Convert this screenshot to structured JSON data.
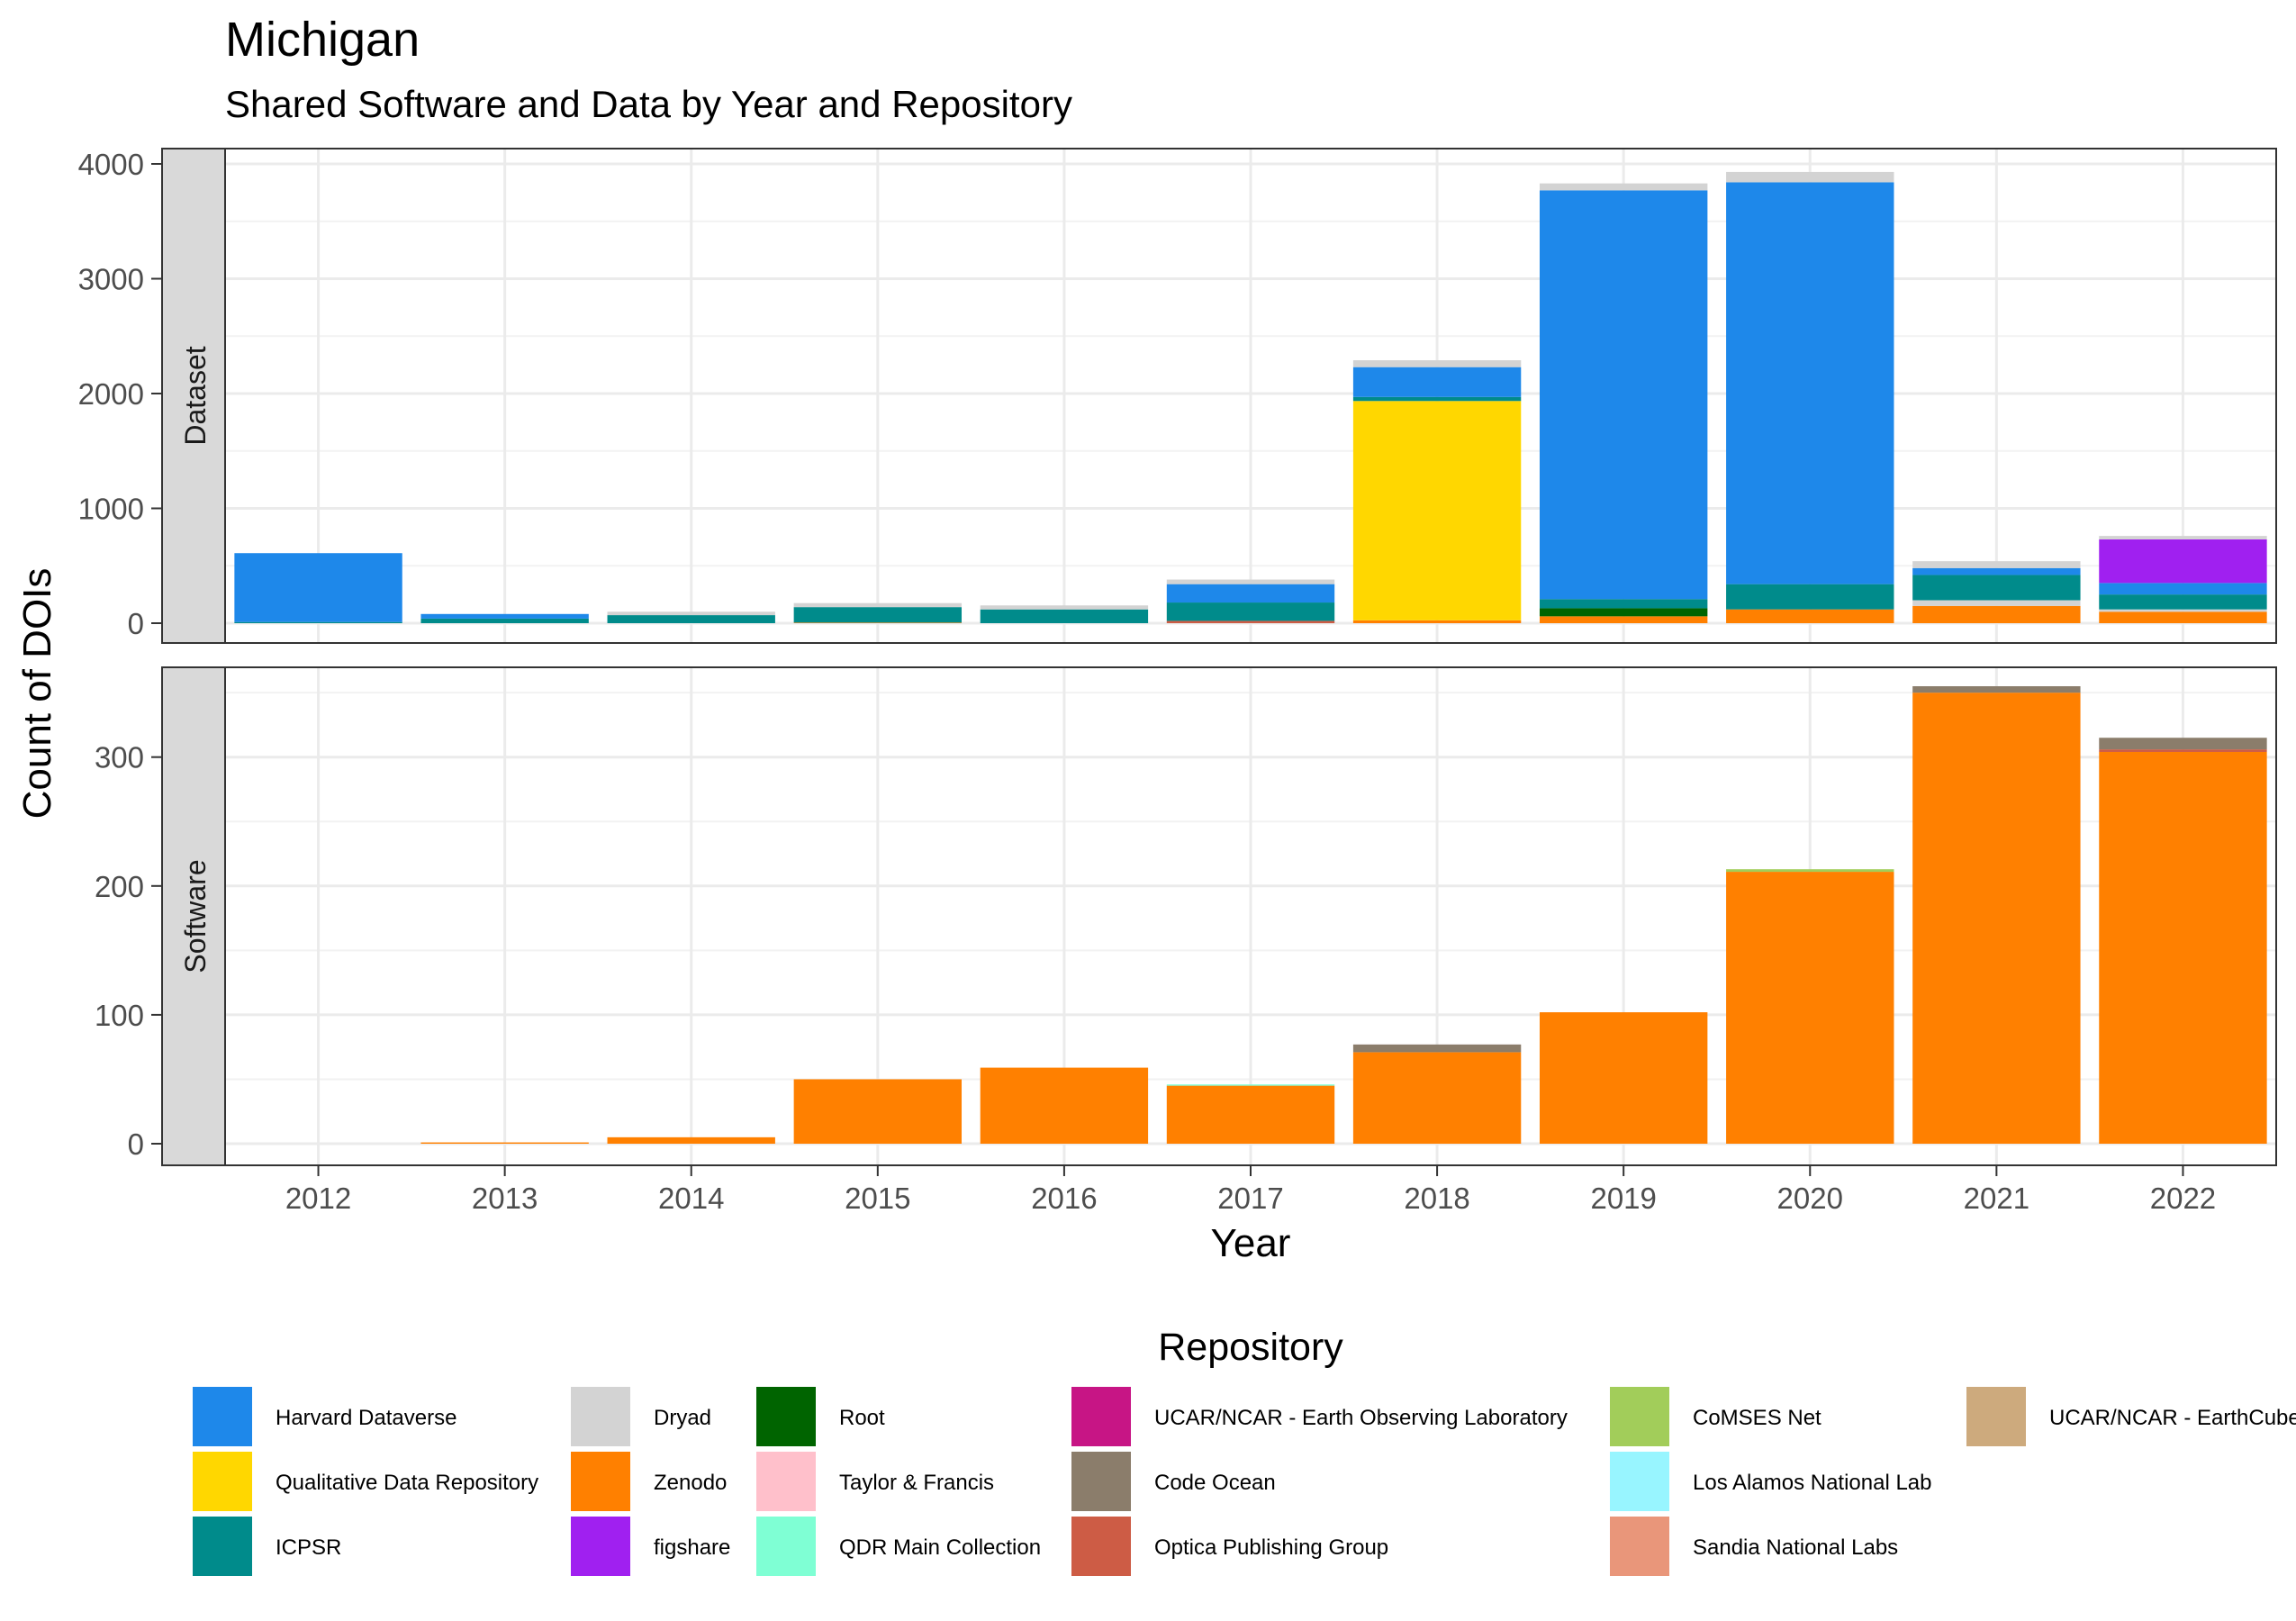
{
  "chart_data": {
    "type": "bar",
    "stacked": true,
    "title": "Michigan",
    "subtitle": "Shared Software and Data by Year and Repository",
    "xlabel": "Year",
    "ylabel": "Count of DOIs",
    "categories": [
      "2012",
      "2013",
      "2014",
      "2015",
      "2016",
      "2017",
      "2018",
      "2019",
      "2020",
      "2021",
      "2022"
    ],
    "grid": true,
    "legend": {
      "title": "Repository",
      "position": "bottom",
      "items": [
        {
          "name": "Harvard Dataverse",
          "color": "#1E88EA"
        },
        {
          "name": "Qualitative Data Repository",
          "color": "#FFD700"
        },
        {
          "name": "ICPSR",
          "color": "#008B8B"
        },
        {
          "name": "Dryad",
          "color": "#D3D3D3"
        },
        {
          "name": "Zenodo",
          "color": "#FF8000"
        },
        {
          "name": "figshare",
          "color": "#A020F0"
        },
        {
          "name": "Root",
          "color": "#006400"
        },
        {
          "name": "Taylor & Francis",
          "color": "#FFC0CB"
        },
        {
          "name": "QDR Main Collection",
          "color": "#7FFFD4"
        },
        {
          "name": "UCAR/NCAR - Earth Observing Laboratory",
          "color": "#C71585"
        },
        {
          "name": "Code Ocean",
          "color": "#8B7D6B"
        },
        {
          "name": "Optica Publishing Group",
          "color": "#CD5C45"
        },
        {
          "name": "CoMSES Net",
          "color": "#A2CD5A"
        },
        {
          "name": "Los Alamos National Lab",
          "color": "#98F5FF"
        },
        {
          "name": "Sandia National Labs",
          "color": "#E9967A"
        },
        {
          "name": "UCAR/NCAR - EarthCube",
          "color": "#CDAA7D"
        }
      ]
    },
    "panels": [
      {
        "label": "Dataset",
        "ylim": [
          0,
          4000
        ],
        "yticks": [
          0,
          1000,
          2000,
          3000,
          4000
        ],
        "bars": [
          {
            "x": "2012",
            "segments": [
              {
                "repo": "ICPSR",
                "value": 10
              },
              {
                "repo": "Harvard Dataverse",
                "value": 600
              }
            ]
          },
          {
            "x": "2013",
            "segments": [
              {
                "repo": "ICPSR",
                "value": 40
              },
              {
                "repo": "Harvard Dataverse",
                "value": 40
              }
            ]
          },
          {
            "x": "2014",
            "segments": [
              {
                "repo": "ICPSR",
                "value": 70
              },
              {
                "repo": "Dryad",
                "value": 30
              }
            ]
          },
          {
            "x": "2015",
            "segments": [
              {
                "repo": "Zenodo",
                "value": 5
              },
              {
                "repo": "ICPSR",
                "value": 135
              },
              {
                "repo": "Dryad",
                "value": 35
              }
            ]
          },
          {
            "x": "2016",
            "segments": [
              {
                "repo": "ICPSR",
                "value": 120
              },
              {
                "repo": "Dryad",
                "value": 35
              }
            ]
          },
          {
            "x": "2017",
            "segments": [
              {
                "repo": "Optica Publishing Group",
                "value": 20
              },
              {
                "repo": "ICPSR",
                "value": 160
              },
              {
                "repo": "Harvard Dataverse",
                "value": 160
              },
              {
                "repo": "Dryad",
                "value": 40
              }
            ]
          },
          {
            "x": "2018",
            "segments": [
              {
                "repo": "Zenodo",
                "value": 25
              },
              {
                "repo": "Qualitative Data Repository",
                "value": 1910
              },
              {
                "repo": "ICPSR",
                "value": 35
              },
              {
                "repo": "Harvard Dataverse",
                "value": 260
              },
              {
                "repo": "Dryad",
                "value": 60
              }
            ]
          },
          {
            "x": "2019",
            "segments": [
              {
                "repo": "Zenodo",
                "value": 60
              },
              {
                "repo": "Root",
                "value": 70
              },
              {
                "repo": "ICPSR",
                "value": 80
              },
              {
                "repo": "Harvard Dataverse",
                "value": 3560
              },
              {
                "repo": "Dryad",
                "value": 60
              }
            ]
          },
          {
            "x": "2020",
            "segments": [
              {
                "repo": "Zenodo",
                "value": 120
              },
              {
                "repo": "ICPSR",
                "value": 220
              },
              {
                "repo": "Harvard Dataverse",
                "value": 3500
              },
              {
                "repo": "Dryad",
                "value": 90
              }
            ]
          },
          {
            "x": "2021",
            "segments": [
              {
                "repo": "Zenodo",
                "value": 150
              },
              {
                "repo": "Dryad",
                "value": 50
              },
              {
                "repo": "ICPSR",
                "value": 220
              },
              {
                "repo": "Harvard Dataverse",
                "value": 60
              },
              {
                "repo": "Dryad",
                "value": 60
              }
            ]
          },
          {
            "x": "2022",
            "segments": [
              {
                "repo": "Zenodo",
                "value": 100
              },
              {
                "repo": "Dryad",
                "value": 20
              },
              {
                "repo": "ICPSR",
                "value": 130
              },
              {
                "repo": "Harvard Dataverse",
                "value": 100
              },
              {
                "repo": "figshare",
                "value": 380
              },
              {
                "repo": "Dryad",
                "value": 30
              }
            ]
          }
        ]
      },
      {
        "label": "Software",
        "ylim": [
          0,
          355
        ],
        "yticks": [
          0,
          100,
          200,
          300
        ],
        "bars": [
          {
            "x": "2012",
            "segments": []
          },
          {
            "x": "2013",
            "segments": [
              {
                "repo": "Zenodo",
                "value": 1
              }
            ]
          },
          {
            "x": "2014",
            "segments": [
              {
                "repo": "Zenodo",
                "value": 5
              }
            ]
          },
          {
            "x": "2015",
            "segments": [
              {
                "repo": "Zenodo",
                "value": 50
              }
            ]
          },
          {
            "x": "2016",
            "segments": [
              {
                "repo": "Zenodo",
                "value": 59
              }
            ]
          },
          {
            "x": "2017",
            "segments": [
              {
                "repo": "Zenodo",
                "value": 45
              },
              {
                "repo": "QDR Main Collection",
                "value": 1
              }
            ]
          },
          {
            "x": "2018",
            "segments": [
              {
                "repo": "Zenodo",
                "value": 71
              },
              {
                "repo": "Code Ocean",
                "value": 6
              }
            ]
          },
          {
            "x": "2019",
            "segments": [
              {
                "repo": "Zenodo",
                "value": 102
              }
            ]
          },
          {
            "x": "2020",
            "segments": [
              {
                "repo": "Zenodo",
                "value": 211
              },
              {
                "repo": "CoMSES Net",
                "value": 2
              }
            ]
          },
          {
            "x": "2021",
            "segments": [
              {
                "repo": "Zenodo",
                "value": 350
              },
              {
                "repo": "Code Ocean",
                "value": 5
              }
            ]
          },
          {
            "x": "2022",
            "segments": [
              {
                "repo": "Zenodo",
                "value": 304
              },
              {
                "repo": "Optica Publishing Group",
                "value": 2
              },
              {
                "repo": "Code Ocean",
                "value": 9
              }
            ]
          }
        ]
      }
    ]
  }
}
